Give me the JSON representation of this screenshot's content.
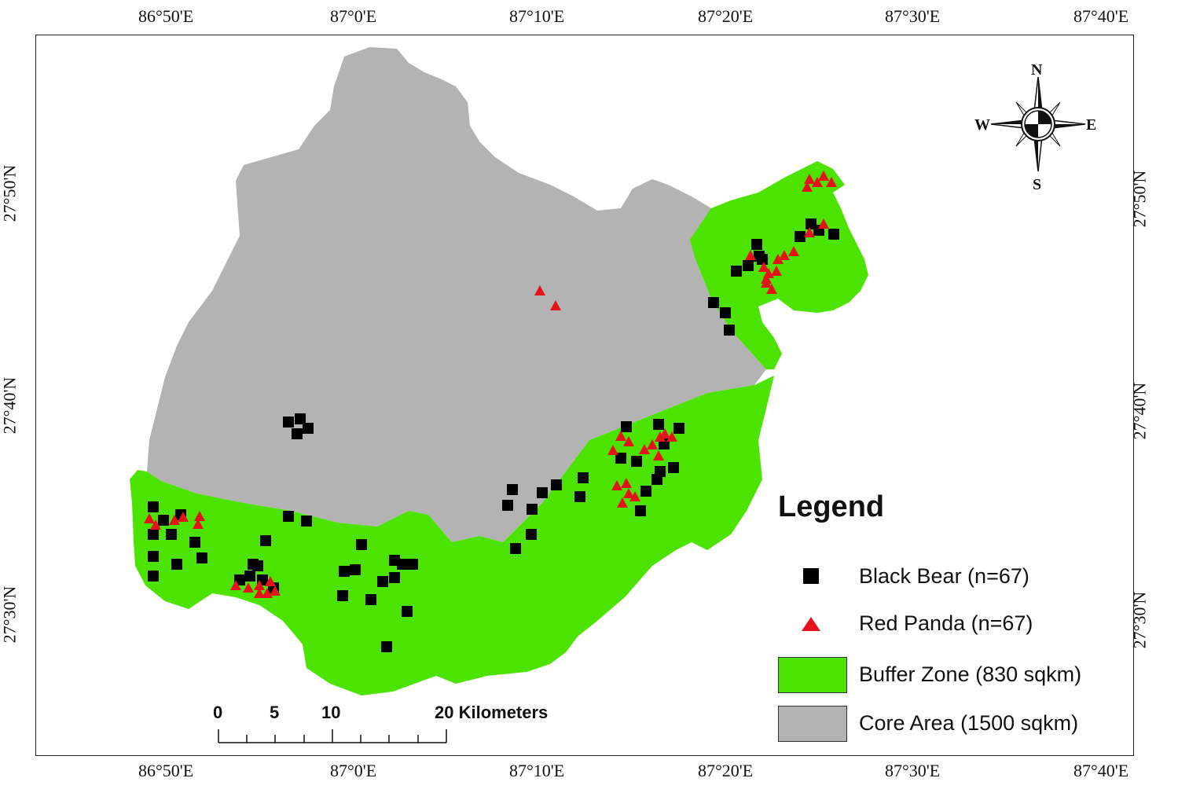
{
  "colors": {
    "core": "#b3b3b3",
    "buffer": "#4ce300",
    "bear": "#000000",
    "panda": "#e4131a"
  },
  "axes": {
    "top_labels": [
      "86°50'E",
      "87°0'E",
      "87°10'E",
      "87°20'E",
      "87°30'E",
      "87°40'E"
    ],
    "bottom_labels": [
      "86°50'E",
      "87°0'E",
      "87°10'E",
      "87°20'E",
      "87°30'E",
      "87°40'E"
    ],
    "left_labels": [
      "27°50'N",
      "27°40'N",
      "27°30'N"
    ],
    "right_labels": [
      "27°50'N",
      "27°40'N",
      "27°30'N"
    ]
  },
  "legend": {
    "title": "Legend",
    "items": [
      {
        "label": "Black Bear (n=67)",
        "icon": "square-marker"
      },
      {
        "label": "Red Panda (n=67)",
        "icon": "triangle-marker"
      },
      {
        "label": "Buffer Zone (830 sqkm)",
        "icon": "green-swatch"
      },
      {
        "label": "Core Area (1500 sqkm)",
        "icon": "gray-swatch"
      }
    ]
  },
  "scale_bar": {
    "labels": [
      "0",
      "5",
      "10",
      "20 Kilometers"
    ]
  },
  "compass": {
    "north": "N",
    "south": "S",
    "east": "E",
    "west": "W"
  }
}
